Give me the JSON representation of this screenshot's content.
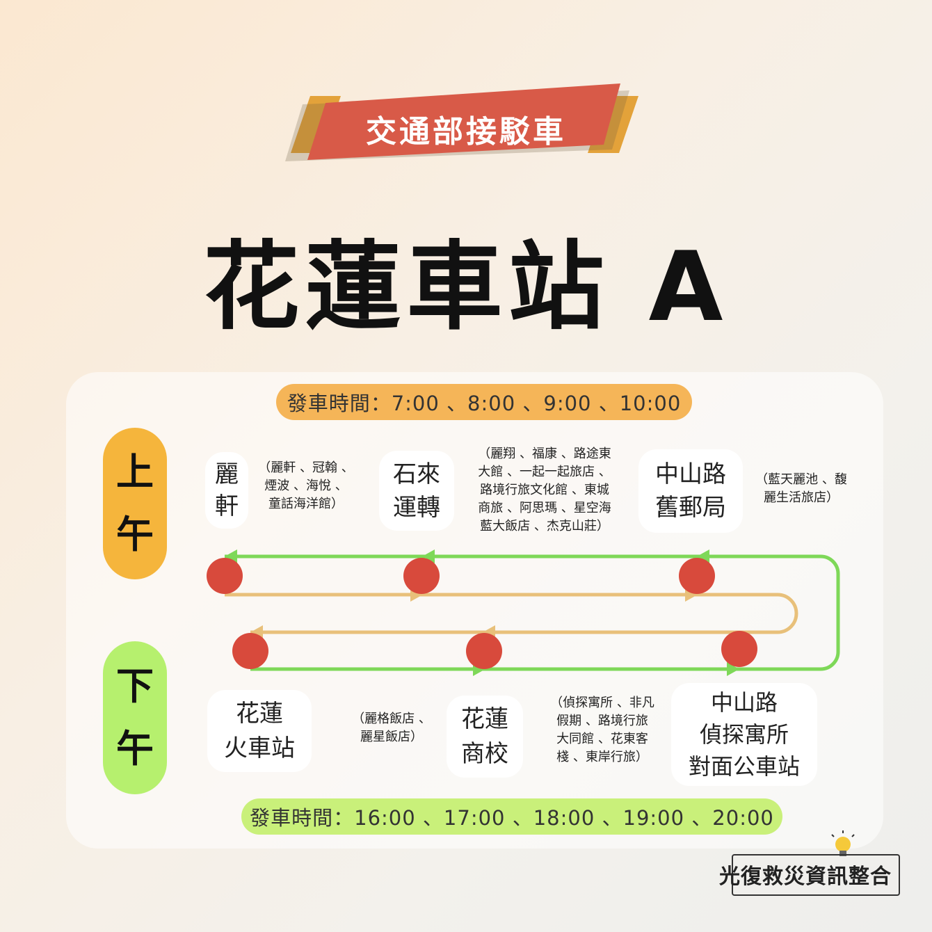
{
  "banner": {
    "label": "交通部接駁車",
    "color": "#d85a48",
    "accent": "#e3a23a"
  },
  "title": "花蓮車站 A",
  "am": {
    "period_line1": "上",
    "period_line2": "午",
    "times": "發車時間：7:00 、8:00 、9:00 、10:00",
    "stops": [
      {
        "name": "麗\n軒",
        "note": "（麗軒 、冠翰 、\n煙波 、海悅 、\n童話海洋館）"
      },
      {
        "name": "石來\n運轉",
        "note": "（麗翔 、福康 、路途東\n大館 、一起一起旅店 、\n路境行旅文化館 、東城\n商旅 、阿思瑪 、星空海\n藍大飯店 、杰克山莊）"
      },
      {
        "name": "中山路\n舊郵局",
        "note": "（藍天麗池 、馥\n麗生活旅店）"
      }
    ]
  },
  "pm": {
    "period_line1": "下",
    "period_line2": "午",
    "times": "發車時間：16:00 、17:00 、18:00 、19:00 、20:00",
    "stops": [
      {
        "name": "花蓮\n火車站",
        "note": "（麗格飯店 、\n麗星飯店）"
      },
      {
        "name": "花蓮\n商校",
        "note": "（偵探寓所 、非凡\n假期 、路境行旅\n大同館 、花東客\n棧 、東岸行旅）"
      },
      {
        "name": "中山路\n偵探寓所\n對面公車站",
        "note": ""
      }
    ]
  },
  "logo": {
    "text": "光復救災資訊整合",
    "icon": "lightbulb-icon"
  },
  "colors": {
    "am_route": "#e8c07a",
    "pm_route": "#7ed858",
    "stop_marker": "#d84a3c"
  }
}
